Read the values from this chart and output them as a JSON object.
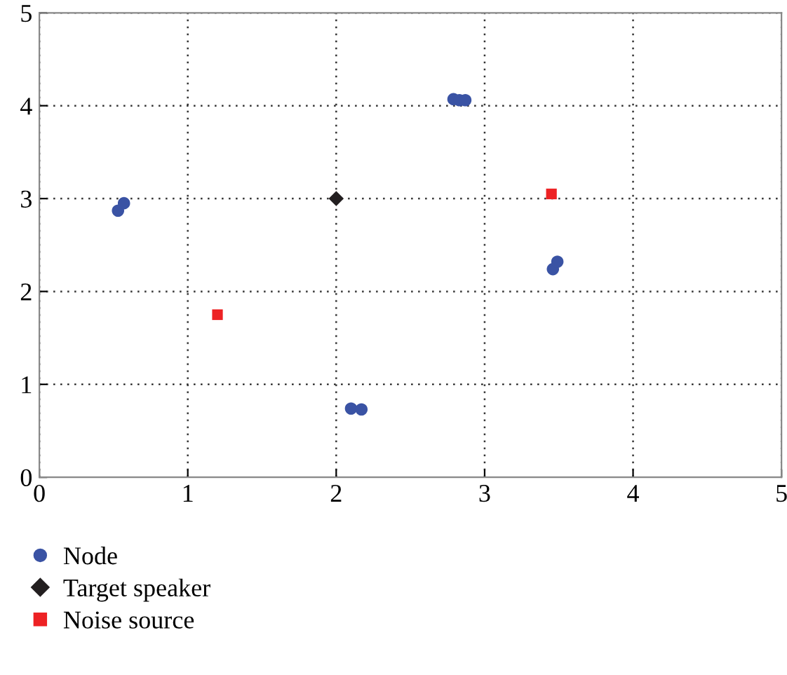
{
  "chart_data": {
    "type": "scatter",
    "xlim": [
      0,
      5
    ],
    "ylim": [
      0,
      5
    ],
    "xticks": [
      0,
      1,
      2,
      3,
      4,
      5
    ],
    "yticks": [
      0,
      1,
      2,
      3,
      4,
      5
    ],
    "grid": true,
    "legend": "bottom left",
    "series": [
      {
        "name": "Node",
        "color": "#3a53a4",
        "marker": "circle",
        "x": [
          0.53,
          0.57,
          2.1,
          2.17,
          2.79,
          2.83,
          2.87,
          3.46,
          3.49
        ],
        "values": [
          2.87,
          2.95,
          0.74,
          0.73,
          4.07,
          4.06,
          4.06,
          2.24,
          2.32
        ]
      },
      {
        "name": "Target speaker",
        "color": "#231f20",
        "marker": "diamond",
        "x": [
          2.0
        ],
        "values": [
          3.0
        ]
      },
      {
        "name": "Noise source",
        "color": "#ed2224",
        "marker": "square",
        "x": [
          1.2,
          3.45
        ],
        "values": [
          1.75,
          3.05
        ]
      }
    ]
  }
}
